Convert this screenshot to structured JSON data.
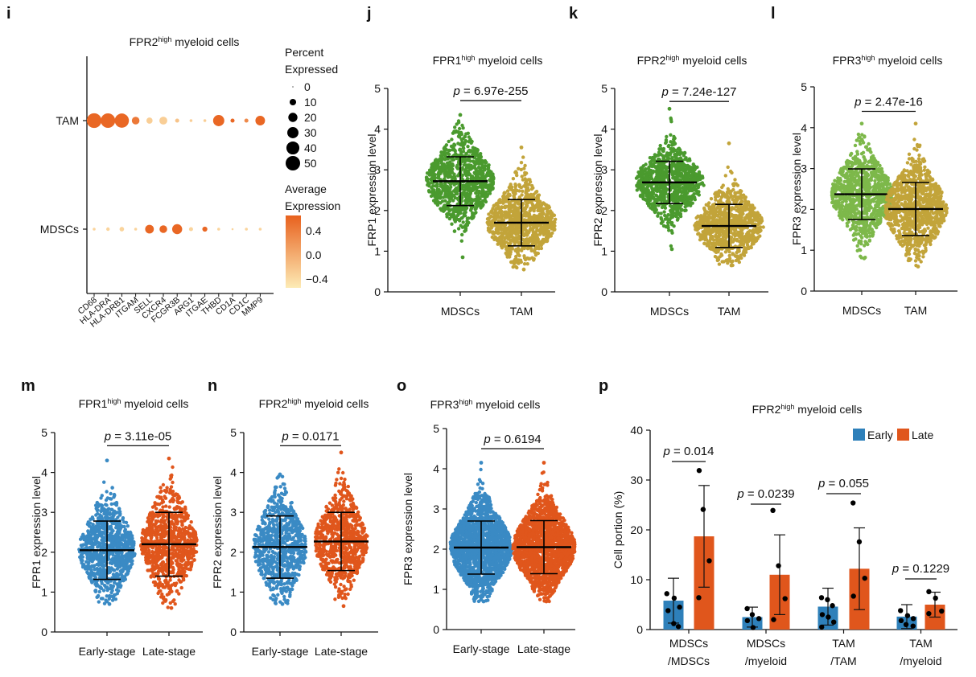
{
  "panel_letters": [
    "i",
    "j",
    "k",
    "l",
    "m",
    "n",
    "o",
    "p"
  ],
  "chart_data": [
    {
      "id": "i",
      "type": "dotplot",
      "title": {
        "prefix": "FPR2",
        "sup": "high",
        "suffix": " myeloid cells"
      },
      "rows": [
        "TAM",
        "MDSCs"
      ],
      "genes": [
        "CD68",
        "HLA-DRA",
        "HLA-DRB1",
        "ITGAM",
        "SELL",
        "CXCR4",
        "FCGR3B",
        "ARG1",
        "ITGAE",
        "THBD",
        "CD1A",
        "CD1C",
        "MMP9"
      ],
      "percent_expressed": {
        "TAM": [
          52,
          50,
          48,
          14,
          9,
          15,
          4,
          2,
          2,
          30,
          4,
          4,
          22
        ],
        "MDSCs": [
          2,
          3,
          5,
          2,
          18,
          14,
          24,
          4,
          6,
          2,
          1,
          2,
          2
        ]
      },
      "avg_expression": {
        "TAM": [
          0.6,
          0.6,
          0.6,
          0.45,
          -0.3,
          -0.3,
          -0.2,
          -0.3,
          -0.3,
          0.6,
          0.6,
          0.3,
          0.6
        ],
        "MDSCs": [
          -0.35,
          -0.35,
          -0.35,
          -0.35,
          0.6,
          0.6,
          0.6,
          -0.35,
          0.6,
          -0.35,
          -0.35,
          -0.35,
          -0.35
        ]
      },
      "size_legend": {
        "title_line1": "Percent",
        "title_line2": "Expressed",
        "values": [
          "0",
          "10",
          "20",
          "30",
          "40",
          "50"
        ]
      },
      "color_legend": {
        "title_line1": "Average",
        "title_line2": "Expression",
        "ticks": [
          "0.4",
          "0.0",
          "−0.4"
        ],
        "range": [
          -0.55,
          0.65
        ],
        "low_color": "#FDEBB5",
        "high_color": "#E8611E"
      }
    },
    {
      "id": "j",
      "type": "scatter",
      "title": {
        "prefix": "FPR1",
        "sup": "high",
        "suffix": " myeloid cells"
      },
      "ylabel": "FRP1 expression level",
      "ylim": [
        0,
        5
      ],
      "yticks": [
        "0",
        "1",
        "2",
        "3",
        "4",
        "5"
      ],
      "categories": [
        "MDSCs",
        "TAM"
      ],
      "series": [
        {
          "name": "MDSCs",
          "mean": 2.72,
          "sd": 0.6,
          "min": 0.85,
          "max": 4.35,
          "color": "#4A9A2E"
        },
        {
          "name": "TAM",
          "mean": 1.7,
          "sd": 0.57,
          "min": 0.55,
          "max": 3.55,
          "color": "#C2A43A"
        }
      ],
      "pvalue_prefix": "p",
      "pvalue_text": " = 6.97e-255"
    },
    {
      "id": "k",
      "type": "scatter",
      "title": {
        "prefix": "FPR2",
        "sup": "high",
        "suffix": " myeloid cells"
      },
      "ylabel": "FPR2 expression level",
      "ylim": [
        0,
        5
      ],
      "yticks": [
        "0",
        "1",
        "2",
        "3",
        "4",
        "5"
      ],
      "categories": [
        "MDSCs",
        "TAM"
      ],
      "series": [
        {
          "name": "MDSCs",
          "mean": 2.69,
          "sd": 0.52,
          "min": 1.05,
          "max": 4.5,
          "color": "#4A9A2E"
        },
        {
          "name": "TAM",
          "mean": 1.62,
          "sd": 0.53,
          "min": 0.65,
          "max": 3.65,
          "color": "#C2A43A"
        }
      ],
      "pvalue_prefix": "p",
      "pvalue_text": " = 7.24e-127"
    },
    {
      "id": "l",
      "type": "scatter",
      "title": {
        "prefix": "FPR3",
        "sup": "high",
        "suffix": " myeloid cells"
      },
      "ylabel": "FPR3 expression level",
      "ylim": [
        0,
        5
      ],
      "yticks": [
        "0",
        "1",
        "2",
        "3",
        "4",
        "5"
      ],
      "categories": [
        "MDSCs",
        "TAM"
      ],
      "series": [
        {
          "name": "MDSCs",
          "mean": 2.37,
          "sd": 0.62,
          "min": 0.8,
          "max": 4.1,
          "color": "#7DB84A"
        },
        {
          "name": "TAM",
          "mean": 2.01,
          "sd": 0.65,
          "min": 0.6,
          "max": 4.1,
          "color": "#C2A43A"
        }
      ],
      "pvalue_prefix": "p",
      "pvalue_text": " = 2.47e-16"
    },
    {
      "id": "m",
      "type": "scatter",
      "title": {
        "prefix": "FPR1",
        "sup": "high",
        "suffix": " myeloid cells"
      },
      "ylabel": "FPR1 expression level",
      "ylim": [
        0,
        5
      ],
      "yticks": [
        "0",
        "1",
        "2",
        "3",
        "4",
        "5"
      ],
      "categories": [
        "Early-stage",
        "Late-stage"
      ],
      "series": [
        {
          "name": "Early-stage",
          "mean": 2.05,
          "sd": 0.73,
          "min": 0.7,
          "max": 4.3,
          "color": "#3A8AC4"
        },
        {
          "name": "Late-stage",
          "mean": 2.2,
          "sd": 0.8,
          "min": 0.6,
          "max": 4.35,
          "color": "#E0561C"
        }
      ],
      "pvalue_prefix": "p",
      "pvalue_text": " = 3.11e-05"
    },
    {
      "id": "n",
      "type": "scatter",
      "title": {
        "prefix": "FPR2",
        "sup": "high",
        "suffix": " myeloid cells"
      },
      "ylabel": "FPR2 expression level",
      "ylim": [
        0,
        5
      ],
      "yticks": [
        "0",
        "1",
        "2",
        "3",
        "4",
        "5"
      ],
      "categories": [
        "Early-stage",
        "Late-stage"
      ],
      "series": [
        {
          "name": "Early-stage",
          "mean": 2.13,
          "sd": 0.78,
          "min": 0.7,
          "max": 3.95,
          "color": "#3A8AC4"
        },
        {
          "name": "Late-stage",
          "mean": 2.27,
          "sd": 0.73,
          "min": 0.65,
          "max": 4.5,
          "color": "#E0561C"
        }
      ],
      "pvalue_prefix": "p",
      "pvalue_text": " = 0.0171"
    },
    {
      "id": "o",
      "type": "scatter",
      "title": {
        "prefix": "FPR3",
        "sup": "high",
        "suffix": " myeloid cells"
      },
      "ylabel": "FPR3 expression level",
      "ylim": [
        0,
        5
      ],
      "yticks": [
        "0",
        "1",
        "2",
        "3",
        "4",
        "5"
      ],
      "categories": [
        "Early-stage",
        "Late-stage"
      ],
      "series": [
        {
          "name": "Early-stage",
          "mean": 2.04,
          "sd": 0.66,
          "min": 0.7,
          "max": 4.15,
          "color": "#3A8AC4"
        },
        {
          "name": "Late-stage",
          "mean": 2.05,
          "sd": 0.66,
          "min": 0.7,
          "max": 4.15,
          "color": "#E0561C"
        }
      ],
      "pvalue_prefix": "p",
      "pvalue_text": " = 0.6194"
    },
    {
      "id": "p",
      "type": "bar",
      "title": {
        "prefix": "FPR2",
        "sup": "high",
        "suffix": " myeloid cells"
      },
      "ylabel": "Cell portion (%)",
      "ylim": [
        0,
        40
      ],
      "yticks": [
        "0",
        "10",
        "20",
        "30",
        "40"
      ],
      "categories": [
        [
          "MDSCs",
          "/MDSCs"
        ],
        [
          "MDSCs",
          "/myeloid"
        ],
        [
          "TAM",
          "/TAM"
        ],
        [
          "TAM",
          "/myeloid"
        ]
      ],
      "legend": [
        {
          "name": "Early",
          "color": "#2E80BA"
        },
        {
          "name": "Late",
          "color": "#E0561C"
        }
      ],
      "series": [
        {
          "name": "Early",
          "color": "#2E80BA",
          "values": [
            5.8,
            2.5,
            4.6,
            2.6
          ],
          "sd": [
            4.5,
            2.0,
            3.7,
            2.4
          ],
          "points": [
            [
              7.2,
              6.3,
              4.5,
              3.8,
              1.2,
              0.6
            ],
            [
              4.2,
              3.0,
              2.2,
              1.8,
              0.4
            ],
            [
              6.4,
              6.0,
              4.8,
              3.0,
              2.5,
              1.5,
              0.5
            ],
            [
              3.8,
              2.8,
              2.2,
              1.8,
              1.0,
              0.7
            ]
          ]
        },
        {
          "name": "Late",
          "color": "#E0561C",
          "values": [
            18.7,
            11.0,
            12.2,
            5.0
          ],
          "sd": [
            10.2,
            8.0,
            8.2,
            2.5
          ],
          "points": [
            [
              31.9,
              24.1,
              13.8,
              6.4
            ],
            [
              23.9,
              12.8,
              6.2,
              2.0
            ],
            [
              25.4,
              17.6,
              10.3,
              6.7
            ],
            [
              7.6,
              6.3,
              3.7,
              3.2
            ]
          ]
        }
      ],
      "pvalues": [
        {
          "prefix": "p",
          "text": " = 0.014"
        },
        {
          "prefix": "p",
          "text": " = 0.0239"
        },
        {
          "prefix": "p",
          "text": " = 0.055"
        },
        {
          "prefix": "p",
          "text": " = 0.1229"
        }
      ]
    }
  ]
}
